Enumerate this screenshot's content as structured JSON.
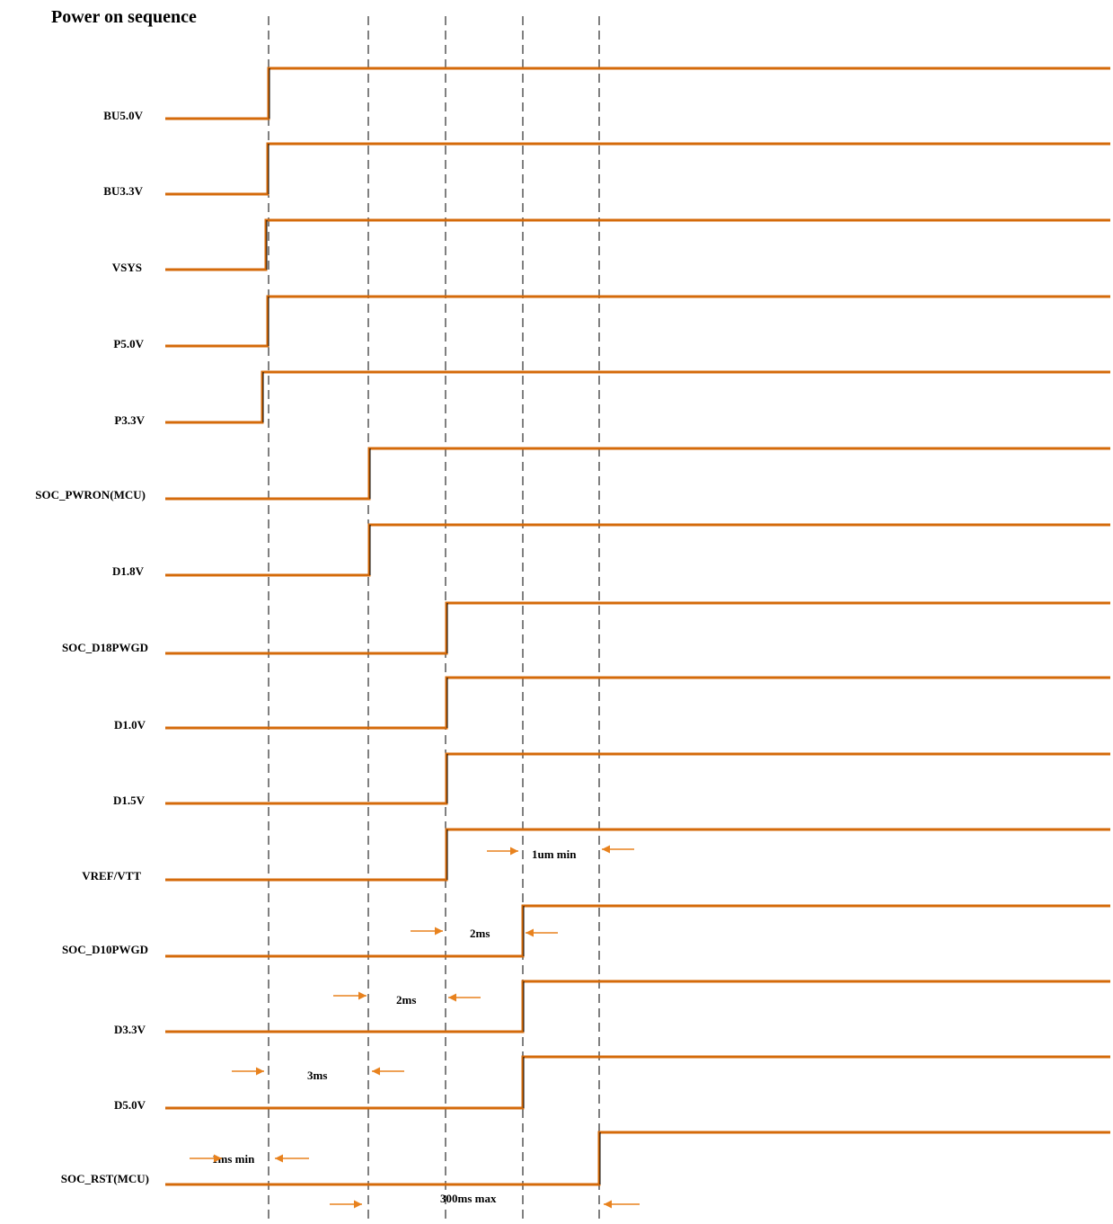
{
  "title": "Power on sequence",
  "colors": {
    "waveform": "#d46a0a",
    "arrow": "#e8821e",
    "guide": "#000000",
    "text": "#000000"
  },
  "signals": [
    {
      "label": "BU5.0V"
    },
    {
      "label": "BU3.3V"
    },
    {
      "label": "VSYS"
    },
    {
      "label": "P5.0V"
    },
    {
      "label": "P3.3V"
    },
    {
      "label": "SOC_PWRON(MCU)"
    },
    {
      "label": "D1.8V"
    },
    {
      "label": "SOC_D18PWGD"
    },
    {
      "label": "D1.0V"
    },
    {
      "label": "D1.5V"
    },
    {
      "label": "VREF/VTT"
    },
    {
      "label": "SOC_D10PWGD"
    },
    {
      "label": "D3.3V"
    },
    {
      "label": "D5.0V"
    },
    {
      "label": "SOC_RST(MCU)"
    }
  ],
  "annotations": [
    {
      "label": "1um min"
    },
    {
      "label": "2ms"
    },
    {
      "label": "2ms"
    },
    {
      "label": "3ms"
    },
    {
      "label": "1ms min"
    },
    {
      "label": "300ms max"
    }
  ]
}
